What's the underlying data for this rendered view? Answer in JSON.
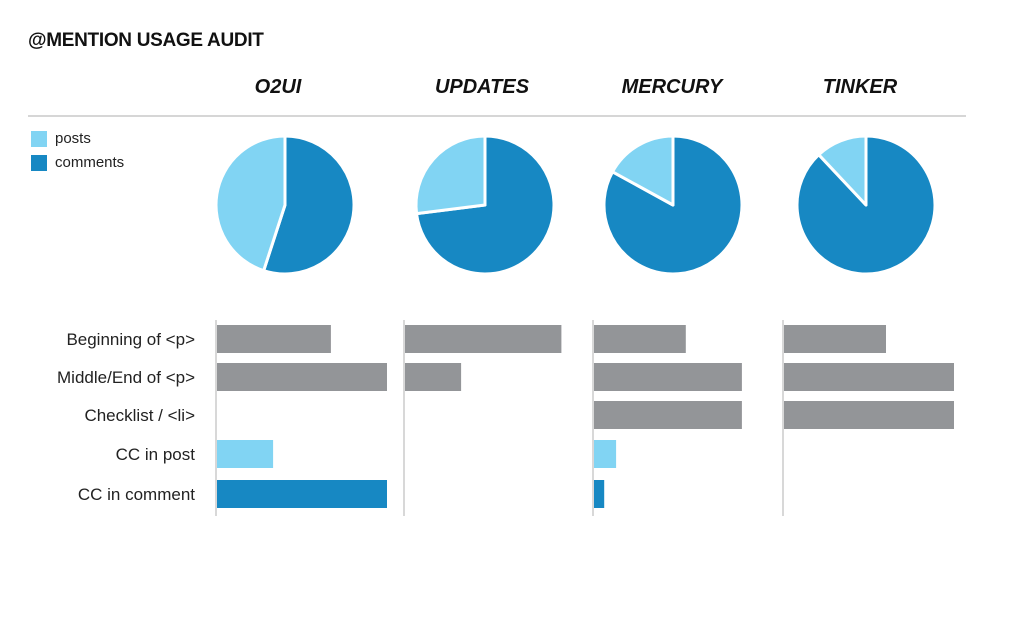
{
  "title": "@MENTION USAGE AUDIT",
  "legend": [
    {
      "label": "posts",
      "color": "#81d4f3"
    },
    {
      "label": "comments",
      "color": "#1788c3"
    }
  ],
  "colors": {
    "bar": "#939598",
    "posts": "#81d4f3",
    "comments": "#1788c3",
    "axis": "#cccccc"
  },
  "chart_data": [
    {
      "type": "pie",
      "title": "",
      "categories": [
        "O2UI",
        "UPDATES",
        "MERCURY",
        "TINKER"
      ],
      "series": [
        {
          "name": "posts",
          "values": [
            0.45,
            0.27,
            0.17,
            0.12
          ]
        },
        {
          "name": "comments",
          "values": [
            0.55,
            0.73,
            0.83,
            0.88
          ]
        }
      ]
    },
    {
      "type": "bar",
      "orientation": "horizontal",
      "categories": [
        "Beginning of <p>",
        "Middle/End of <p>",
        "Checklist / <li>",
        "CC in post",
        "CC in comment"
      ],
      "category_colors": [
        "#939598",
        "#939598",
        "#939598",
        "#81d4f3",
        "#1788c3"
      ],
      "panels": [
        {
          "name": "O2UI",
          "values": [
            0.67,
            1.0,
            0,
            0.33,
            1.0
          ]
        },
        {
          "name": "UPDATES",
          "values": [
            0.92,
            0.33,
            0,
            0,
            0
          ]
        },
        {
          "name": "MERCURY",
          "values": [
            0.54,
            0.87,
            0.87,
            0.13,
            0.06
          ]
        },
        {
          "name": "TINKER",
          "values": [
            0.6,
            1.0,
            1.0,
            0,
            0
          ]
        }
      ]
    }
  ]
}
